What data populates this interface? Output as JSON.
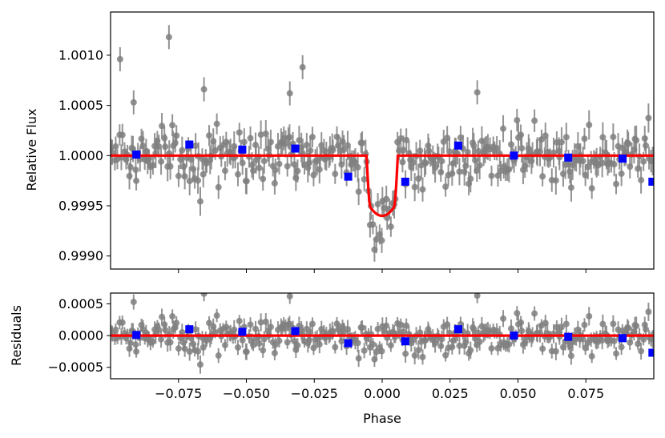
{
  "chart_data": [
    {
      "type": "scatter",
      "panel": "top",
      "xlabel": "",
      "ylabel": "Relative Flux",
      "xlim": [
        -0.1,
        0.1
      ],
      "ylim": [
        0.99887,
        1.00143
      ],
      "xticks": [
        -0.075,
        -0.05,
        -0.025,
        0.0,
        0.025,
        0.05,
        0.075
      ],
      "xtick_labels": [
        "",
        "",
        "",
        "",
        "",
        "",
        ""
      ],
      "yticks": [
        0.999,
        0.9995,
        1.0,
        1.0005,
        1.001
      ],
      "ytick_labels": [
        "0.9990",
        "0.9995",
        "1.0000",
        "1.0005",
        "1.0010"
      ],
      "grid": false,
      "colors": {
        "data": "#808080",
        "binned": "#0000ff",
        "model": "#ff0000"
      },
      "transit_model": {
        "baseline": 1.0,
        "depth": 0.0006,
        "center": 0.0,
        "total_duration": 0.0115,
        "ingress_duration": 0.0015
      },
      "binned": {
        "x": [
          -0.0905,
          -0.071,
          -0.0515,
          -0.032,
          -0.0125,
          0.0085,
          0.028,
          0.0485,
          0.0685,
          0.0885,
          0.0995
        ],
        "y": [
          1.00001,
          1.00011,
          1.00006,
          1.00007,
          0.99979,
          0.99974,
          1.0001,
          1.0,
          0.99998,
          0.99997,
          0.99974
        ]
      },
      "outliers": {
        "x": [
          -0.0785,
          -0.0965,
          -0.0915,
          -0.034,
          -0.0293,
          0.035,
          -0.0656
        ],
        "y": [
          1.00118,
          1.00096,
          1.00053,
          1.00062,
          1.00088,
          1.00063,
          1.00066
        ]
      }
    },
    {
      "type": "scatter",
      "panel": "bottom",
      "xlabel": "Phase",
      "ylabel": "Residuals",
      "xlim": [
        -0.1,
        0.1
      ],
      "ylim": [
        -0.00068,
        0.00067
      ],
      "xticks": [
        -0.075,
        -0.05,
        -0.025,
        0.0,
        0.025,
        0.05,
        0.075
      ],
      "xtick_labels": [
        "−0.075",
        "−0.050",
        "−0.025",
        "0.000",
        "0.025",
        "0.050",
        "0.075"
      ],
      "yticks": [
        -0.0005,
        0.0,
        0.0005
      ],
      "ytick_labels": [
        "−0.0005",
        "0.0000",
        "0.0005"
      ],
      "grid": false,
      "colors": {
        "data": "#808080",
        "binned": "#0000ff",
        "model": "#ff0000"
      },
      "zero_line": 0.0,
      "binned": {
        "x": [
          -0.0905,
          -0.071,
          -0.0515,
          -0.032,
          -0.0125,
          0.0085,
          0.028,
          0.0485,
          0.0685,
          0.0885,
          0.0995
        ],
        "y": [
          1e-05,
          0.0001,
          6e-05,
          7e-05,
          -0.00012,
          -9e-05,
          0.0001,
          0.0,
          -2e-05,
          -4e-05,
          -0.00027
        ]
      }
    }
  ]
}
